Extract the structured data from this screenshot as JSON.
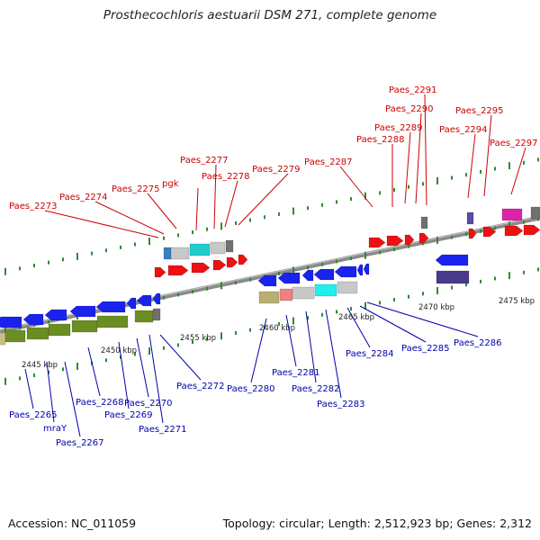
{
  "title": "Prosthecochloris aestuarii DSM 271, complete genome",
  "footer": {
    "accession": "Accession: NC_011059",
    "stats": "Topology: circular; Length: 2,512,923 bp; Genes: 2,312"
  },
  "colors": {
    "top_label": "#cc0000",
    "bottom_label": "#0000aa",
    "tick": "#228b22",
    "backbone": "#999999"
  },
  "scale_labels": [
    "2445 kbp",
    "2450 kbp",
    "2455 kbp",
    "2460 kbp",
    "2465 kbp",
    "2470 kbp",
    "2475 kbp"
  ],
  "top_genes": [
    "Paes_2273",
    "Paes_2274",
    "Paes_2275",
    "pgk",
    "Paes_2277",
    "Paes_2278",
    "Paes_2279",
    "Paes_2287",
    "Paes_2288",
    "Paes_2289",
    "Paes_2290",
    "Paes_2291",
    "Paes_2294",
    "Paes_2295",
    "Paes_2297"
  ],
  "bottom_genes": [
    "Paes_2265",
    "mraY",
    "Paes_2267",
    "Paes_2268",
    "Paes_2269",
    "Paes_2270",
    "Paes_2271",
    "Paes_2272",
    "Paes_2280",
    "Paes_2281",
    "Paes_2282",
    "Paes_2283",
    "Paes_2284",
    "Paes_2285",
    "Paes_2286"
  ]
}
